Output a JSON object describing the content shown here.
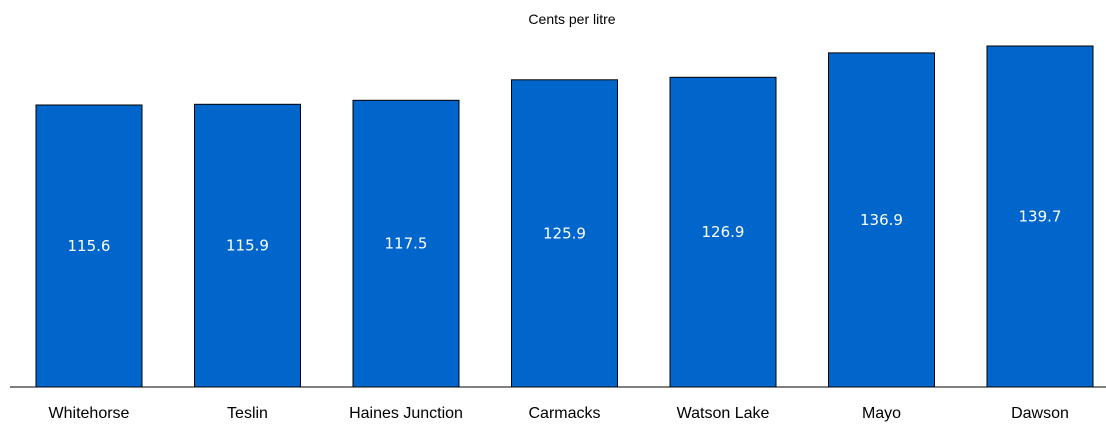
{
  "chart_data": {
    "type": "bar",
    "title": "Cents per litre",
    "categories": [
      "Whitehorse",
      "Teslin",
      "Haines Junction",
      "Carmacks",
      "Watson Lake",
      "Mayo",
      "Dawson"
    ],
    "values": [
      115.6,
      115.9,
      117.5,
      125.9,
      126.9,
      136.9,
      139.7
    ],
    "xlabel": "",
    "ylabel": "",
    "ylim": [
      0,
      150
    ],
    "grid": false,
    "legend": "none",
    "bar_color": "#0066cc",
    "bar_border_color": "#000000",
    "value_label_color": "#ffffff"
  }
}
